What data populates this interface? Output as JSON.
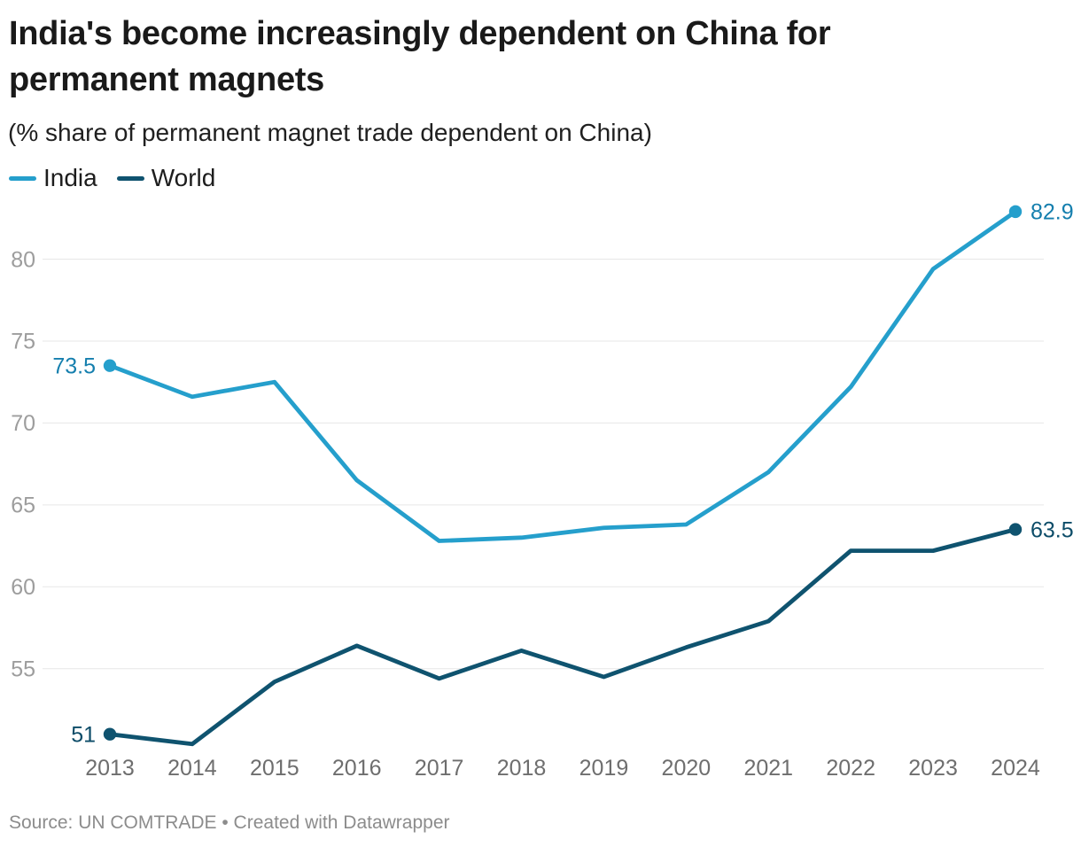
{
  "header": {
    "title": "India's become increasingly dependent on China for permanent magnets",
    "subtitle": "(% share of permanent magnet trade dependent on China)"
  },
  "footer": {
    "source": "Source: UN COMTRADE • Created with Datawrapper"
  },
  "colors": {
    "india": "#259fcc",
    "world": "#0f536f",
    "india_label": "#157fae",
    "world_label": "#0c4c68",
    "grid": "#e7e7e7",
    "y_tick_text": "#9d9d9d",
    "x_tick_text": "#6e6e6e"
  },
  "chart_data": {
    "type": "line",
    "title": "India's become increasingly dependent on China for permanent magnets",
    "subtitle": "(% share of permanent magnet trade dependent on China)",
    "x": [
      2013,
      2014,
      2015,
      2016,
      2017,
      2018,
      2019,
      2020,
      2021,
      2022,
      2023,
      2024
    ],
    "series": [
      {
        "name": "India",
        "color_key": "india",
        "label_color_key": "india_label",
        "values": [
          73.5,
          71.6,
          72.5,
          66.5,
          62.8,
          63.0,
          63.6,
          63.8,
          67.0,
          72.2,
          79.4,
          82.9
        ],
        "start_label": "73.5",
        "end_label": "82.9"
      },
      {
        "name": "World",
        "color_key": "world",
        "label_color_key": "world_label",
        "values": [
          51,
          50.4,
          54.2,
          56.4,
          54.4,
          56.1,
          54.5,
          56.3,
          57.9,
          62.2,
          62.2,
          63.5
        ],
        "start_label": "51",
        "end_label": "63.5"
      }
    ],
    "yticks": [
      55,
      60,
      65,
      70,
      75,
      80
    ],
    "ylim": [
      50,
      84
    ],
    "xlim": [
      2013,
      2024
    ],
    "xlabel": "",
    "ylabel": "",
    "grid": "horizontal",
    "legend_position": "top-left"
  }
}
